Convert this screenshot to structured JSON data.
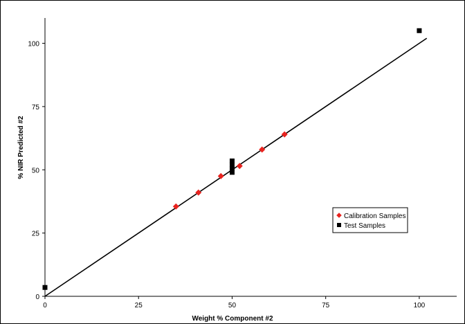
{
  "chart_data": {
    "type": "scatter",
    "title": "",
    "xlabel": "Weight % Component #2",
    "ylabel": "% NIR Predicted #2",
    "xlim": [
      0,
      110
    ],
    "ylim": [
      0,
      110
    ],
    "xticks": [
      0,
      25,
      50,
      75,
      100
    ],
    "yticks": [
      0,
      25,
      50,
      75,
      100
    ],
    "grid": false,
    "legend_position": "right",
    "series": [
      {
        "name": "Calibration Samples",
        "marker": "diamond",
        "color": "#e8231f",
        "points": [
          [
            35,
            35.5
          ],
          [
            41,
            41
          ],
          [
            47,
            47.5
          ],
          [
            52,
            51.5
          ],
          [
            58,
            58
          ],
          [
            64,
            64
          ]
        ]
      },
      {
        "name": "Test Samples",
        "marker": "square",
        "color": "#000000",
        "points": [
          [
            0,
            3.5
          ],
          [
            50,
            49
          ],
          [
            50,
            50.5
          ],
          [
            50,
            52
          ],
          [
            50,
            53.5
          ],
          [
            100,
            105
          ]
        ]
      }
    ],
    "fit_line": {
      "x": [
        0,
        102
      ],
      "y": [
        0,
        102
      ]
    }
  }
}
